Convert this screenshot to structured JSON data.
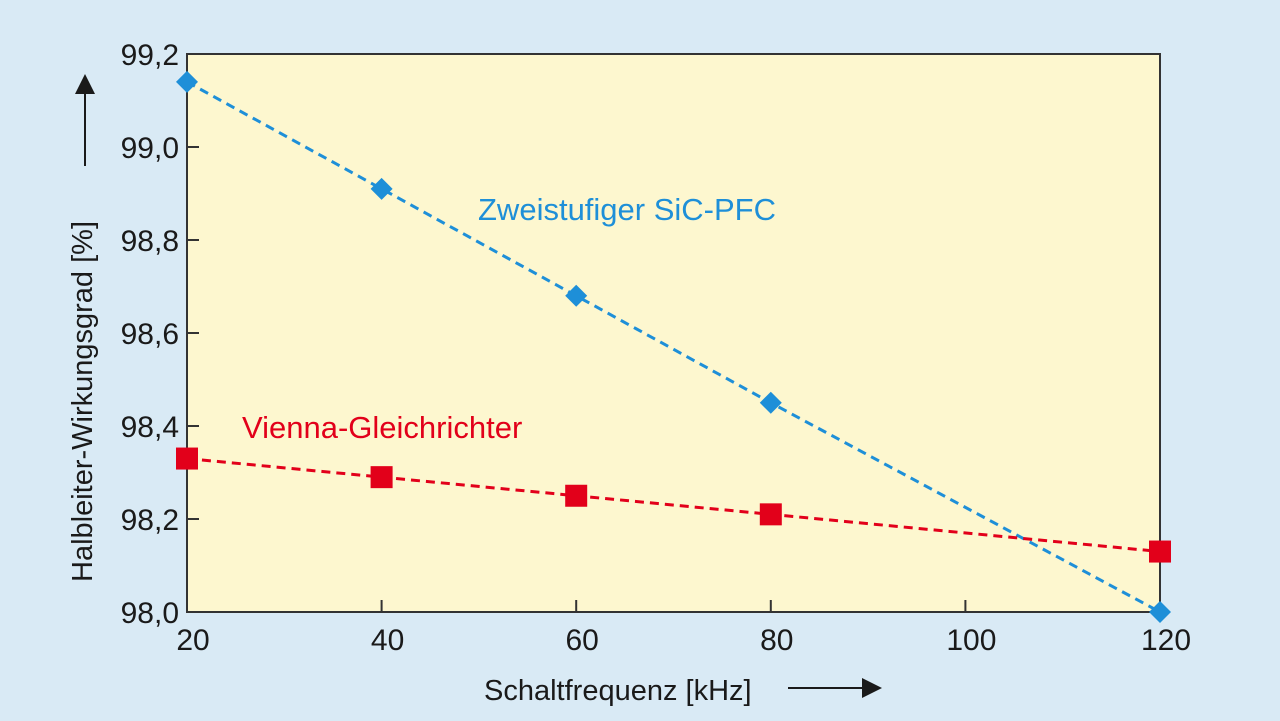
{
  "chart_data": {
    "type": "line",
    "xlabel": "Schaltfrequenz [kHz]",
    "ylabel": "Halbleiter-Wirkungsgrad [%]",
    "xlim": [
      20,
      120
    ],
    "ylim": [
      98.0,
      99.2
    ],
    "x_ticks": [
      {
        "value": 20,
        "label": "20"
      },
      {
        "value": 40,
        "label": "40"
      },
      {
        "value": 60,
        "label": "60"
      },
      {
        "value": 80,
        "label": "80"
      },
      {
        "value": 100,
        "label": "100"
      },
      {
        "value": 120,
        "label": "120"
      }
    ],
    "y_ticks": [
      {
        "value": 98.0,
        "label": "98,0"
      },
      {
        "value": 98.2,
        "label": "98,2"
      },
      {
        "value": 98.4,
        "label": "98,4"
      },
      {
        "value": 98.6,
        "label": "98,6"
      },
      {
        "value": 98.8,
        "label": "98,8"
      },
      {
        "value": 99.0,
        "label": "99,0"
      },
      {
        "value": 99.2,
        "label": "99,2"
      }
    ],
    "grid": false,
    "legend": "inline",
    "series": [
      {
        "name": "Zweistufiger SiC-PFC",
        "color": "#1e8fd8",
        "marker": "diamond",
        "x": [
          20,
          40,
          60,
          80,
          120
        ],
        "values": [
          99.14,
          98.91,
          98.68,
          98.45,
          98.0
        ]
      },
      {
        "name": "Vienna-Gleichrichter",
        "color": "#e2001a",
        "marker": "square",
        "x": [
          20,
          40,
          60,
          80,
          120
        ],
        "values": [
          98.33,
          98.29,
          98.25,
          98.21,
          98.13
        ]
      }
    ]
  }
}
